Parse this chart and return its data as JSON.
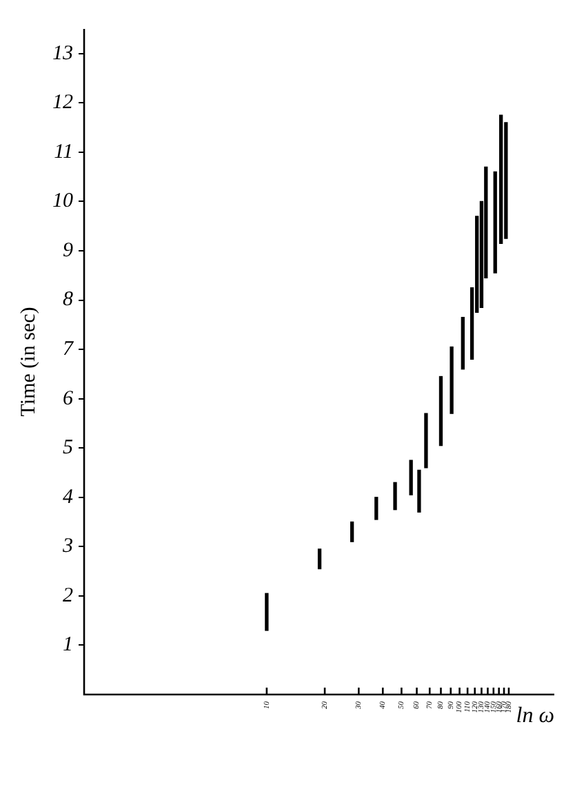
{
  "chart_data": {
    "type": "bar",
    "xlabel": "ln ω",
    "ylabel": "Time (in sec)",
    "x": [
      10,
      18.8,
      27.7,
      37,
      46.3,
      56,
      61.7,
      67,
      80,
      91,
      104,
      116,
      123,
      130,
      137,
      153,
      164,
      174
    ],
    "base": [
      1.3,
      2.55,
      3.1,
      3.55,
      3.75,
      4.05,
      3.7,
      4.6,
      5.05,
      5.7,
      6.6,
      6.8,
      7.75,
      7.85,
      8.45,
      8.55,
      9.15,
      9.25
    ],
    "values": [
      0.75,
      0.4,
      0.4,
      0.45,
      0.55,
      0.7,
      0.85,
      1.1,
      1.4,
      1.35,
      1.05,
      1.45,
      1.95,
      2.15,
      2.25,
      2.05,
      2.6,
      2.35
    ],
    "color": "#000000",
    "log": "x",
    "grid": false,
    "xlim": [
      1.13,
      310
    ],
    "xticks": [
      10,
      20,
      30,
      40,
      50,
      60,
      70,
      80,
      90,
      100,
      110,
      120,
      130,
      140,
      150,
      160,
      170,
      180
    ],
    "ylim": [
      0,
      13.5
    ],
    "yticks": [
      1,
      2,
      3,
      4,
      5,
      6,
      7,
      8,
      9,
      10,
      11,
      12,
      13
    ]
  }
}
